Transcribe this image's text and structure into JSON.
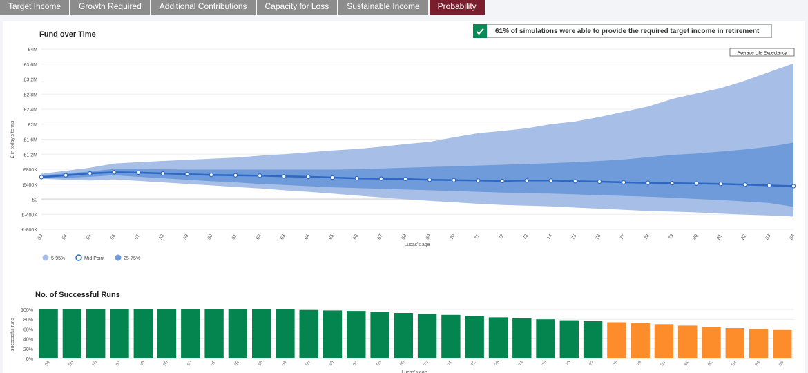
{
  "tabs": [
    "Target Income",
    "Growth Required",
    "Additional Contributions",
    "Capacity for Loss",
    "Sustainable Income",
    "Probability"
  ],
  "active_tab": "Probability",
  "banner": {
    "text": "61% of simulations were able to provide the required target income in retirement",
    "icon": "check-icon",
    "icon_color": "#0a8a55"
  },
  "colors": {
    "band_outer": "#a7bfe6",
    "band_inner": "#6f9bdb",
    "mid_line": "#2d68c4",
    "bar_success": "#04854f",
    "bar_warning": "#fd8c2a",
    "active_tab": "#7a1e2e"
  },
  "chart_data": [
    {
      "type": "area",
      "title": "Fund over Time",
      "xlabel": "Lucas's age",
      "ylabel": "£ in today's terms",
      "ylim": [
        -800000,
        4000000
      ],
      "yticks": [
        -800000,
        -400000,
        0,
        400000,
        800000,
        1200000,
        1600000,
        2000000,
        2400000,
        2800000,
        3200000,
        3600000,
        4000000
      ],
      "ytick_labels": [
        "£-800K",
        "£-400K",
        "£0",
        "£400K",
        "£800K",
        "£1.2M",
        "£1.6M",
        "£2M",
        "£2.4M",
        "£2.8M",
        "£3.2M",
        "£3.6M",
        "£4M"
      ],
      "x": [
        53,
        54,
        55,
        56,
        57,
        58,
        59,
        60,
        61,
        62,
        63,
        64,
        65,
        66,
        67,
        68,
        69,
        70,
        71,
        72,
        73,
        74,
        75,
        76,
        77,
        78,
        79,
        80,
        81,
        82,
        83,
        84
      ],
      "annotation": "Average Life Expectancy",
      "grid": true,
      "legend_position": "bottom-left",
      "legend": [
        "5-95%",
        "Mid Point",
        "25-75%"
      ],
      "series": [
        {
          "name": "5-95%",
          "kind": "band",
          "low": [
            550000,
            520000,
            500000,
            530000,
            490000,
            450000,
            410000,
            370000,
            330000,
            290000,
            240000,
            200000,
            150000,
            100000,
            50000,
            0,
            -40000,
            -80000,
            -120000,
            -150000,
            -170000,
            -190000,
            -220000,
            -250000,
            -280000,
            -310000,
            -330000,
            -350000,
            -380000,
            -410000,
            -430000,
            -460000
          ],
          "high": [
            680000,
            760000,
            840000,
            950000,
            990000,
            1020000,
            1050000,
            1080000,
            1110000,
            1160000,
            1200000,
            1250000,
            1300000,
            1340000,
            1400000,
            1470000,
            1530000,
            1650000,
            1760000,
            1820000,
            1890000,
            2000000,
            2070000,
            2190000,
            2330000,
            2470000,
            2670000,
            2820000,
            2960000,
            3160000,
            3390000,
            3620000
          ]
        },
        {
          "name": "25-75%",
          "kind": "band",
          "low": [
            560000,
            570000,
            600000,
            640000,
            600000,
            560000,
            520000,
            480000,
            450000,
            410000,
            380000,
            350000,
            320000,
            300000,
            280000,
            260000,
            240000,
            220000,
            200000,
            180000,
            160000,
            150000,
            130000,
            110000,
            90000,
            70000,
            40000,
            10000,
            -20000,
            -60000,
            -100000,
            -200000
          ],
          "high": [
            640000,
            690000,
            740000,
            810000,
            810000,
            800000,
            790000,
            790000,
            790000,
            790000,
            790000,
            790000,
            790000,
            800000,
            820000,
            840000,
            860000,
            880000,
            900000,
            920000,
            940000,
            960000,
            990000,
            1020000,
            1060000,
            1120000,
            1180000,
            1220000,
            1270000,
            1330000,
            1400000,
            1510000
          ]
        },
        {
          "name": "Mid Point",
          "kind": "line",
          "values": [
            590000,
            640000,
            690000,
            720000,
            710000,
            690000,
            670000,
            650000,
            640000,
            630000,
            610000,
            600000,
            580000,
            560000,
            550000,
            540000,
            520000,
            510000,
            500000,
            490000,
            500000,
            500000,
            480000,
            470000,
            450000,
            440000,
            430000,
            420000,
            410000,
            390000,
            370000,
            350000
          ]
        }
      ]
    },
    {
      "type": "bar",
      "title": "No. of Successful Runs",
      "xlabel": "Lucas's age",
      "ylabel": "successful runs",
      "ylim": [
        0,
        100
      ],
      "yticks": [
        0,
        20,
        40,
        60,
        80,
        100
      ],
      "ytick_labels": [
        "0%",
        "20%",
        "40%",
        "60%",
        "80%",
        "100%"
      ],
      "categories": [
        54,
        55,
        56,
        57,
        58,
        59,
        60,
        61,
        62,
        63,
        64,
        65,
        66,
        67,
        68,
        69,
        70,
        71,
        72,
        73,
        74,
        75,
        76,
        77,
        78,
        79,
        80,
        81,
        82,
        83,
        84,
        85
      ],
      "values": [
        100,
        100,
        100,
        100,
        100,
        100,
        100,
        100,
        100,
        100,
        100,
        99,
        98,
        97,
        95,
        93,
        91,
        89,
        86,
        84,
        82,
        80,
        78,
        76,
        74,
        72,
        70,
        67,
        64,
        62,
        60,
        58
      ],
      "warning_from_index": 24
    }
  ]
}
